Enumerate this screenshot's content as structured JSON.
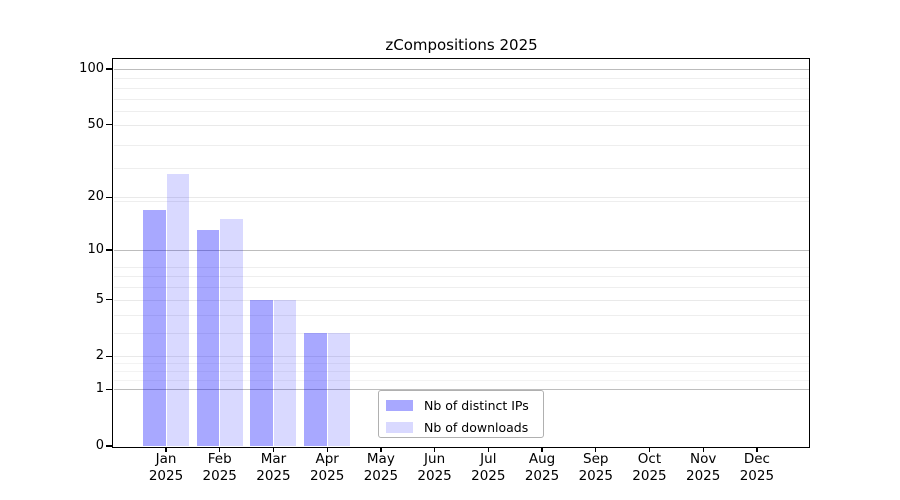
{
  "chart_data": {
    "type": "bar",
    "title": "zCompositions 2025",
    "categories": [
      "Jan",
      "Feb",
      "Mar",
      "Apr",
      "May",
      "Jun",
      "Jul",
      "Aug",
      "Sep",
      "Oct",
      "Nov",
      "Dec"
    ],
    "x_year": "2025",
    "series": [
      {
        "name": "Nb of distinct IPs",
        "color": "rgba(0,0,255,0.34)",
        "color_hex": "#a9a9fa",
        "values": [
          17,
          13,
          5,
          3,
          0,
          0,
          0,
          0,
          0,
          0,
          0,
          0
        ]
      },
      {
        "name": "Nb of downloads",
        "color": "rgba(0,0,255,0.15)",
        "color_hex": "#d8d8fa",
        "values": [
          27,
          15,
          5,
          3,
          0,
          0,
          0,
          0,
          0,
          0,
          0,
          0
        ]
      }
    ],
    "y_scale": "log1p",
    "y_ticks": [
      0,
      1,
      2,
      5,
      10,
      20,
      50,
      100
    ],
    "ylim": [
      0,
      113
    ],
    "grid": true,
    "legend_position": "lower center"
  }
}
